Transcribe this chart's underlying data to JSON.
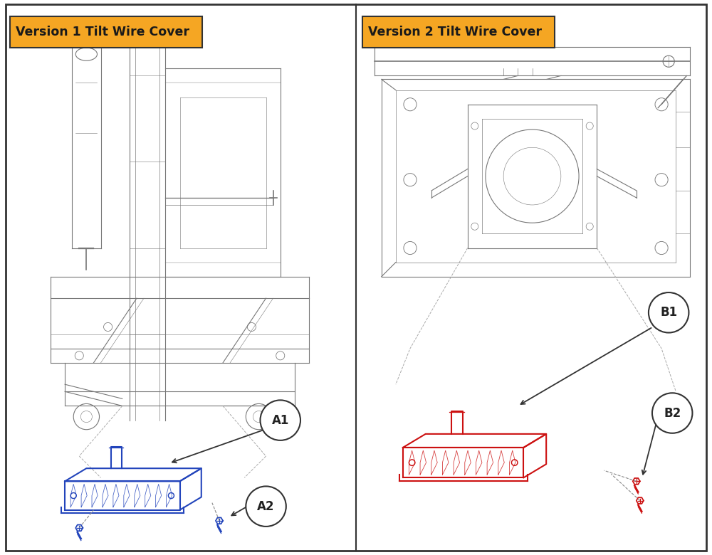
{
  "panel1_title": "Version 1 Tilt Wire Cover",
  "panel2_title": "Version 2 Tilt Wire Cover",
  "orange_color": "#F5A623",
  "title_text_color": "#1a1a1a",
  "bg_color": "#ffffff",
  "border_color": "#444444",
  "part1_color": "#2244BB",
  "part2_color": "#CC1111",
  "line_color": "#888888",
  "dark_line": "#555555",
  "label_A1": "A1",
  "label_A2": "A2",
  "label_B1": "B1",
  "label_B2": "B2"
}
